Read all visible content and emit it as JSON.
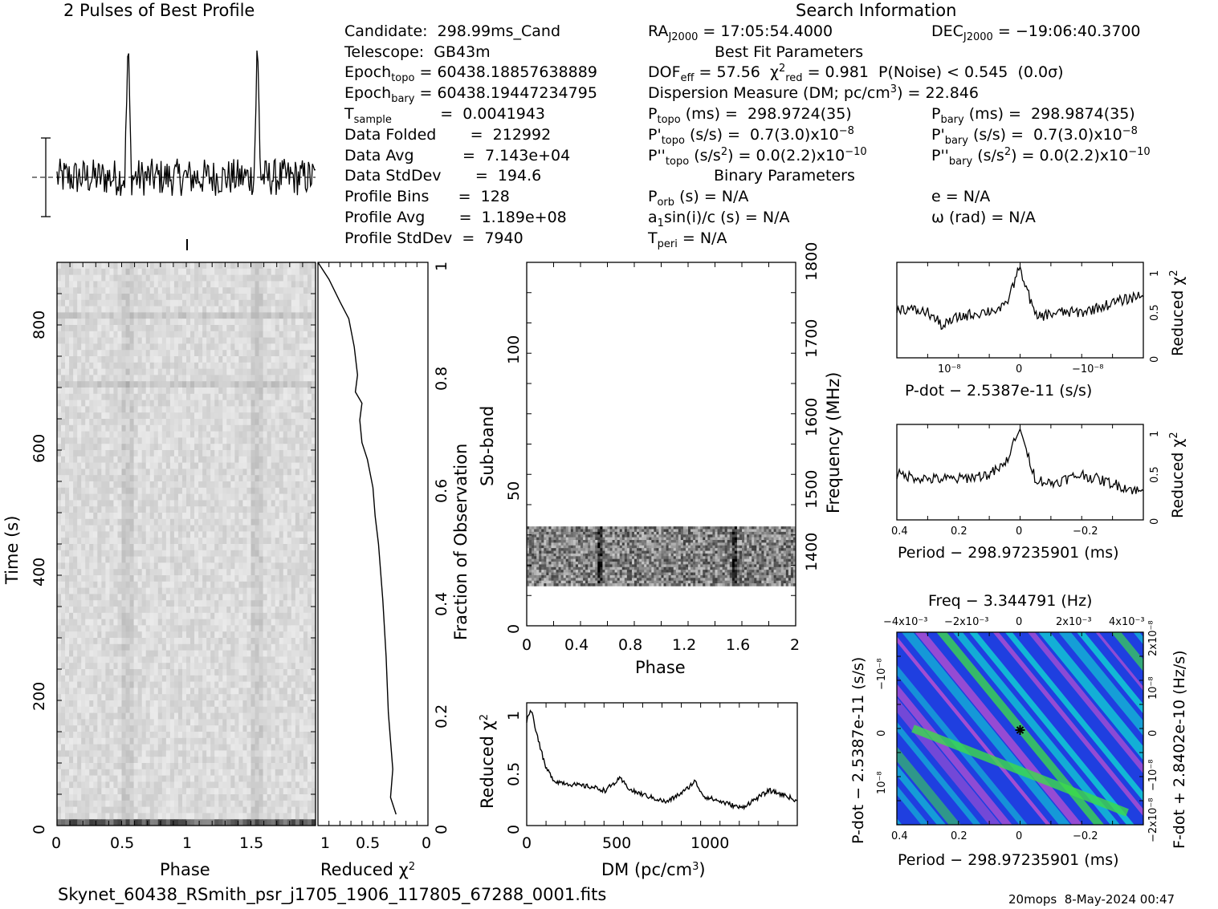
{
  "titles": {
    "profile_title": "2 Pulses of Best Profile",
    "search_title": "Search Information",
    "best_fit_title": "Best Fit Parameters",
    "binary_title": "Binary Parameters",
    "footer_file": "Skynet_60438_RSmith_psr_j1705_1906_117805_67288_0001.fits",
    "footer_stamp": "20mops  8-May-2024 00:47"
  },
  "info_left": [
    {
      "label": "Candidate:  298.99ms_Cand"
    },
    {
      "label": "Telescope:  GB43m"
    },
    {
      "label": "Epoch",
      "sub": "topo",
      "value": " = 60438.18857638889"
    },
    {
      "label": "Epoch",
      "sub": "bary",
      "value": " = 60438.19447234795"
    },
    {
      "label": "T",
      "sub": "sample",
      "value": "          =  0.0041943"
    },
    {
      "label": "Data Folded       =  212992"
    },
    {
      "label": "Data Avg          =  7.143e+04"
    },
    {
      "label": "Data StdDev       =  194.6"
    },
    {
      "label": "Profile Bins      =  128"
    },
    {
      "label": "Profile Avg       =  1.189e+08"
    },
    {
      "label": "Profile StdDev  =  7940"
    }
  ],
  "info_mid": {
    "ra": "RA",
    "ra_sub": "J2000",
    "ra_val": " = 17:05:54.4000",
    "dec": "DEC",
    "dec_sub": "J2000",
    "dec_val": " = −19:06:40.3700",
    "dof": "DOF",
    "dof_sub": "eff",
    "dof_val": " = 57.56  χ",
    "chi_sup": "2",
    "chi_sub": "red",
    "chi_val": " = 0.981  P(Noise) < 0.545  (0.0σ)",
    "dm_line": "Dispersion Measure (DM; pc/cm",
    "dm_sup": "3",
    "dm_val": ") = 22.846",
    "ptopo": "P",
    "ptopo_sub": "topo",
    "ptopo_val": " (ms) =  298.9724(35)",
    "pbary": "P",
    "pbary_sub": "bary",
    "pbary_val": " (ms) =  298.9874(35)",
    "pdtopo": "P'",
    "pdtopo_sub": "topo",
    "pdtopo_val": " (s/s) =  0.7(3.0)x10",
    "pdtopo_exp": "−8",
    "pdbary": "P'",
    "pdbary_sub": "bary",
    "pdbary_val": " (s/s) =  0.7(3.0)x10",
    "pdbary_exp": "−8",
    "pddtopo": "P''",
    "pddtopo_sub": "topo",
    "pddtopo_val": " (s/s",
    "pddtopo_sup": "2",
    "pddtopo_val2": ") = 0.0(2.2)x10",
    "pddtopo_exp": "−10",
    "pddbary": "P''",
    "pddbary_sub": "bary",
    "pddbary_val": " (s/s",
    "pddbary_sup": "2",
    "pddbary_val2": ") = 0.0(2.2)x10",
    "pddbary_exp": "−10",
    "porb": "P",
    "porb_sub": "orb",
    "porb_val": " (s) = N/A",
    "ecc": "e = N/A",
    "a1": "a",
    "a1_sub": "1",
    "a1_val": "sin(i)/c (s) = N/A",
    "omega": "ω (rad) = N/A",
    "tperi": "T",
    "tperi_sub": "peri",
    "tperi_val": " = N/A"
  },
  "axes": {
    "phase_label": "Phase",
    "time_label": "Time (s)",
    "redchi_label": "Reduced χ",
    "redchi_sup": "2",
    "fraction_label": "Fraction of Observation",
    "subband_label": "Sub-band",
    "frequency_label": "Frequency (MHz)",
    "dm_label": "DM (pc/cm",
    "dm_sup": "3",
    "dm_close": ")",
    "pdot_label": "P-dot − 2.5387e-11 (s/s)",
    "period_label": "Period − 298.97235901 (ms)",
    "period_label2": "Period − 298.97235901 (ms)",
    "freq_label": "Freq − 3.344791 (Hz)",
    "pdot_left_label": "P-dot − 2.5387e-11 (s/s)",
    "fdot_label": "F-dot + 2.8402e-10 (Hz/s)"
  },
  "ticks": {
    "time_y": [
      "0",
      "200",
      "400",
      "600",
      "800"
    ],
    "phase_x": [
      "0",
      "0.5",
      "1",
      "1.5"
    ],
    "redchi_x": [
      "1",
      "0.5",
      "0"
    ],
    "fraction_y": [
      "0",
      "0.2",
      "0.4",
      "0.6",
      "0.8",
      "1"
    ],
    "subband_y": [
      "0",
      "50",
      "100"
    ],
    "freq_y": [
      "1400",
      "1500",
      "1600",
      "1700",
      "1800"
    ],
    "phase2_x": [
      "0",
      "0.4",
      "0.8",
      "1.2",
      "1.6",
      "2"
    ],
    "dm_x": [
      "0",
      "500",
      "1000"
    ],
    "dm_redchi_y": [
      "0",
      "0.5",
      "1"
    ],
    "pdot_x": [
      "10⁻⁸",
      "0",
      "−10⁻⁸"
    ],
    "redchi_small_y": [
      "0",
      "0.5",
      "1"
    ],
    "period_x": [
      "0.4",
      "0.2",
      "0",
      "−0.2"
    ],
    "freq_top_x": [
      "−4x10⁻³",
      "−2x10⁻³",
      "0",
      "2x10⁻³",
      "4x10⁻³"
    ],
    "pdot_left_y": [
      "10⁻⁸",
      "0",
      "−10⁻⁸"
    ],
    "fdot_right_y": [
      "−2x10⁻⁸",
      "−10⁻⁸",
      "0",
      "10⁻⁸",
      "2x10⁻⁸"
    ]
  },
  "colors": {
    "line": "#000000",
    "map_low": "#1f3fe0",
    "map_mid": "#11c6d4",
    "map_high": "#3ddc4a",
    "map_peak": "#b34fd1"
  },
  "chart_data": [
    {
      "type": "line",
      "title": "2 Pulses of Best Profile",
      "xlabel": "",
      "ylabel": "",
      "xlim": [
        0,
        2
      ],
      "peaks_phase": [
        0.55,
        1.55
      ],
      "x": [
        0,
        0.1,
        0.2,
        0.3,
        0.4,
        0.5,
        0.55,
        0.6,
        0.7,
        0.8,
        0.9,
        1.0,
        1.1,
        1.2,
        1.3,
        1.4,
        1.5,
        1.55,
        1.6,
        1.7,
        1.8,
        1.9,
        2.0
      ],
      "y": [
        -0.4,
        0.2,
        0.0,
        0.1,
        -0.1,
        0.0,
        2.0,
        -0.2,
        0.0,
        -0.3,
        -0.1,
        -0.4,
        0.2,
        0.0,
        0.1,
        -0.1,
        0.0,
        2.0,
        -0.2,
        0.0,
        -0.3,
        -0.1,
        -0.4
      ]
    },
    {
      "type": "heatmap",
      "title": "",
      "xlabel": "Phase",
      "ylabel": "Time (s)",
      "xlim": [
        0,
        2
      ],
      "ylim": [
        0,
        900
      ]
    },
    {
      "type": "line",
      "xlabel": "Reduced χ²",
      "ylabel": "Fraction of Observation",
      "xlim": [
        1,
        0
      ],
      "ylim": [
        0,
        1
      ],
      "x": [
        0.29,
        0.34,
        0.32,
        0.36,
        0.38,
        0.41,
        0.45,
        0.48,
        0.5,
        0.55,
        0.6,
        0.62,
        0.6,
        0.66,
        0.64,
        0.67,
        0.72,
        0.8,
        0.9,
        1.0
      ],
      "y": [
        0.02,
        0.05,
        0.1,
        0.2,
        0.3,
        0.4,
        0.5,
        0.55,
        0.6,
        0.65,
        0.68,
        0.72,
        0.75,
        0.77,
        0.8,
        0.85,
        0.9,
        0.93,
        0.97,
        1.0
      ]
    },
    {
      "type": "heatmap",
      "xlabel": "Phase",
      "ylabel": "Sub-band",
      "xlim": [
        0,
        2
      ],
      "ylim": [
        0,
        128
      ],
      "occupied_subbands": [
        14,
        35
      ],
      "right_axis": "Frequency (MHz)",
      "right_ylim": [
        1300,
        1800
      ]
    },
    {
      "type": "line",
      "xlabel": "DM (pc/cm³)",
      "ylabel": "Reduced χ²",
      "xlim": [
        0,
        1450
      ],
      "ylim": [
        0,
        1.05
      ],
      "x": [
        0,
        22.8,
        60,
        100,
        150,
        250,
        350,
        420,
        500,
        560,
        650,
        750,
        850,
        900,
        950,
        1050,
        1150,
        1250,
        1300,
        1400,
        1450
      ],
      "y": [
        0.9,
        1.0,
        0.75,
        0.5,
        0.38,
        0.35,
        0.33,
        0.3,
        0.4,
        0.3,
        0.25,
        0.2,
        0.3,
        0.38,
        0.25,
        0.2,
        0.15,
        0.25,
        0.3,
        0.25,
        0.2
      ]
    },
    {
      "type": "line",
      "xlabel": "P-dot − 2.5387e-11 (s/s)",
      "ylabel": "Reduced χ²",
      "ylim": [
        0,
        1.05
      ],
      "x": [
        -1.6,
        -1.2,
        -1.0,
        -0.8,
        -0.5,
        -0.2,
        0,
        0.2,
        0.5,
        0.8,
        1.0,
        1.2,
        1.6
      ],
      "y": [
        0.55,
        0.5,
        0.35,
        0.45,
        0.5,
        0.55,
        1.0,
        0.45,
        0.5,
        0.5,
        0.55,
        0.6,
        0.7
      ]
    },
    {
      "type": "line",
      "xlabel": "Period − 298.97235901 (ms)",
      "ylabel": "Reduced χ²",
      "xlim": [
        0.4,
        -0.4
      ],
      "ylim": [
        0,
        1.05
      ],
      "x": [
        0.4,
        0.3,
        0.2,
        0.1,
        0.05,
        0,
        -0.05,
        -0.1,
        -0.2,
        -0.3,
        -0.4
      ],
      "y": [
        0.5,
        0.45,
        0.45,
        0.5,
        0.6,
        1.0,
        0.45,
        0.4,
        0.5,
        0.4,
        0.3
      ]
    },
    {
      "type": "heatmap",
      "xlabel": "Period − 298.97235901 (ms)",
      "ylabel": "P-dot − 2.5387e-11 (s/s)",
      "top_axis": "Freq − 3.344791 (Hz)",
      "right_axis": "F-dot + 2.8402e-10 (Hz/s)",
      "xlim": [
        0.4,
        -0.4
      ],
      "best_fit": [
        0,
        0
      ]
    }
  ]
}
